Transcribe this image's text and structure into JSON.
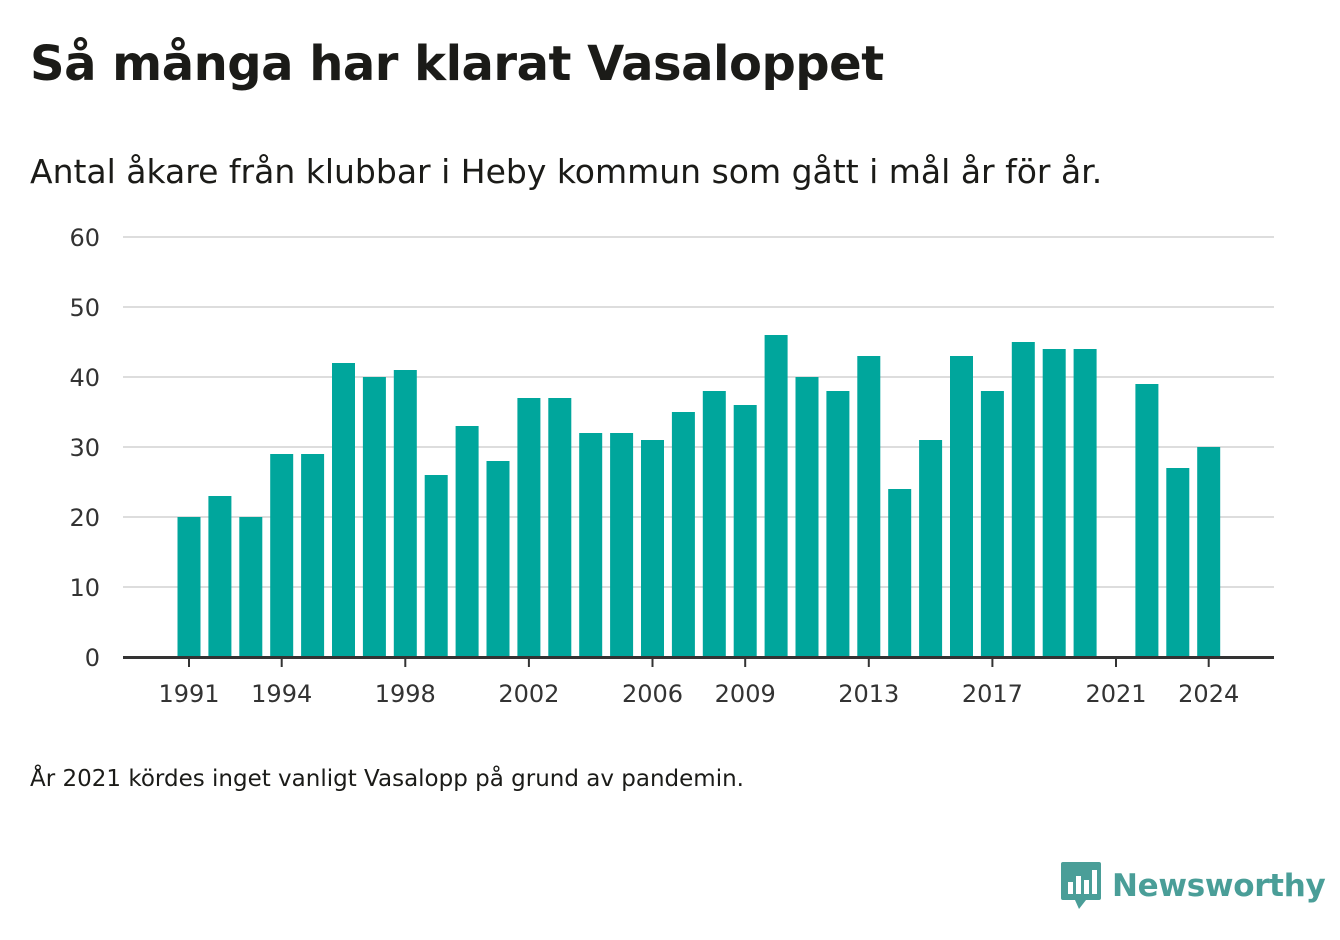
{
  "header": {
    "title": "Så många har klarat Vasaloppet",
    "subtitle": "Antal åkare från klubbar i Heby kommun som gått i mål år för år."
  },
  "footer": {
    "note": "År 2021 kördes inget vanligt Vasalopp på grund av pandemin.",
    "brand": "Newsworthy"
  },
  "colors": {
    "bar": "#00a69c",
    "grid": "#dddddd",
    "axis": "#333333",
    "brand": "#4a9e98"
  },
  "chart_data": {
    "type": "bar",
    "categories": [
      1991,
      1992,
      1993,
      1994,
      1995,
      1996,
      1997,
      1998,
      1999,
      2000,
      2001,
      2002,
      2003,
      2004,
      2005,
      2006,
      2007,
      2008,
      2009,
      2010,
      2011,
      2012,
      2013,
      2014,
      2015,
      2016,
      2017,
      2018,
      2019,
      2020,
      2021,
      2022,
      2023,
      2024
    ],
    "values": [
      20,
      23,
      20,
      29,
      29,
      42,
      40,
      41,
      26,
      33,
      28,
      37,
      37,
      32,
      32,
      31,
      35,
      38,
      36,
      46,
      40,
      38,
      43,
      24,
      31,
      43,
      38,
      45,
      44,
      44,
      null,
      39,
      27,
      30
    ],
    "x_tick_labels": [
      "1991",
      "1994",
      "1998",
      "2002",
      "2006",
      "2009",
      "2013",
      "2017",
      "2021",
      "2024"
    ],
    "y_ticks": [
      0,
      10,
      20,
      30,
      40,
      50,
      60
    ],
    "ylim": [
      0,
      60
    ],
    "xlabel": "",
    "ylabel": "",
    "grid": true,
    "legend": "none"
  }
}
